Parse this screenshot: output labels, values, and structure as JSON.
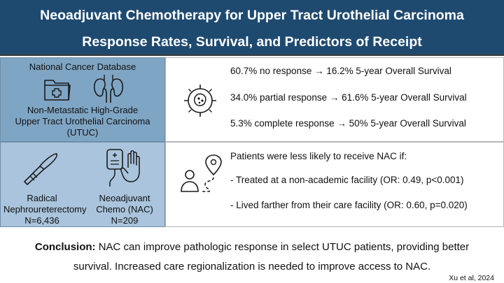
{
  "header": {
    "title_line1": "Neoadjuvant Chemotherapy for Upper Tract Urothelial Carcinoma",
    "title_line2": "Response Rates, Survival, and Predictors of Receipt"
  },
  "cohort": {
    "database": "National Cancer Database",
    "population_line1": "Non-Metastatic High-Grade",
    "population_line2": "Upper Tract Urothelial Carcinoma",
    "population_line3": "(UTUC)"
  },
  "treatments": {
    "surgery_line1": "Radical",
    "surgery_line2": "Nephroureterectomy",
    "surgery_count": "N=6,436",
    "chemo_line1": "Neoadjuvant",
    "chemo_line2": "Chemo (NAC)",
    "chemo_count": "N=209"
  },
  "responses": [
    "60.7% no response → 16.2% 5-year Overall Survival",
    "34.0% partial response → 61.6% 5-year Overall Survival",
    "5.3% complete response → 50% 5-year Overall Survival"
  ],
  "predictors": {
    "intro": "Patients were less likely to receive NAC if:",
    "items": [
      "- Treated at a non-academic facility (OR: 0.49, p<0.001)",
      "- Lived farther from their care facility (OR: 0.60, p=0.020)"
    ]
  },
  "conclusion": {
    "label": "Conclusion:",
    "line1_text": " NAC can improve pathologic response in select UTUC patients, providing better",
    "line2_text": "survival. Increased care regionalization is needed to improve access to NAC."
  },
  "citation": "Xu et al, 2024",
  "colors": {
    "header_bg": "#1f4a70",
    "panel_dark": "#7fa5c4",
    "panel_light": "#a9c4dc"
  },
  "icons": [
    "folder-medical-icon",
    "kidneys-icon",
    "scalpel-icon",
    "iv-bag-hand-icon",
    "tumor-target-icon",
    "person-location-icon"
  ]
}
